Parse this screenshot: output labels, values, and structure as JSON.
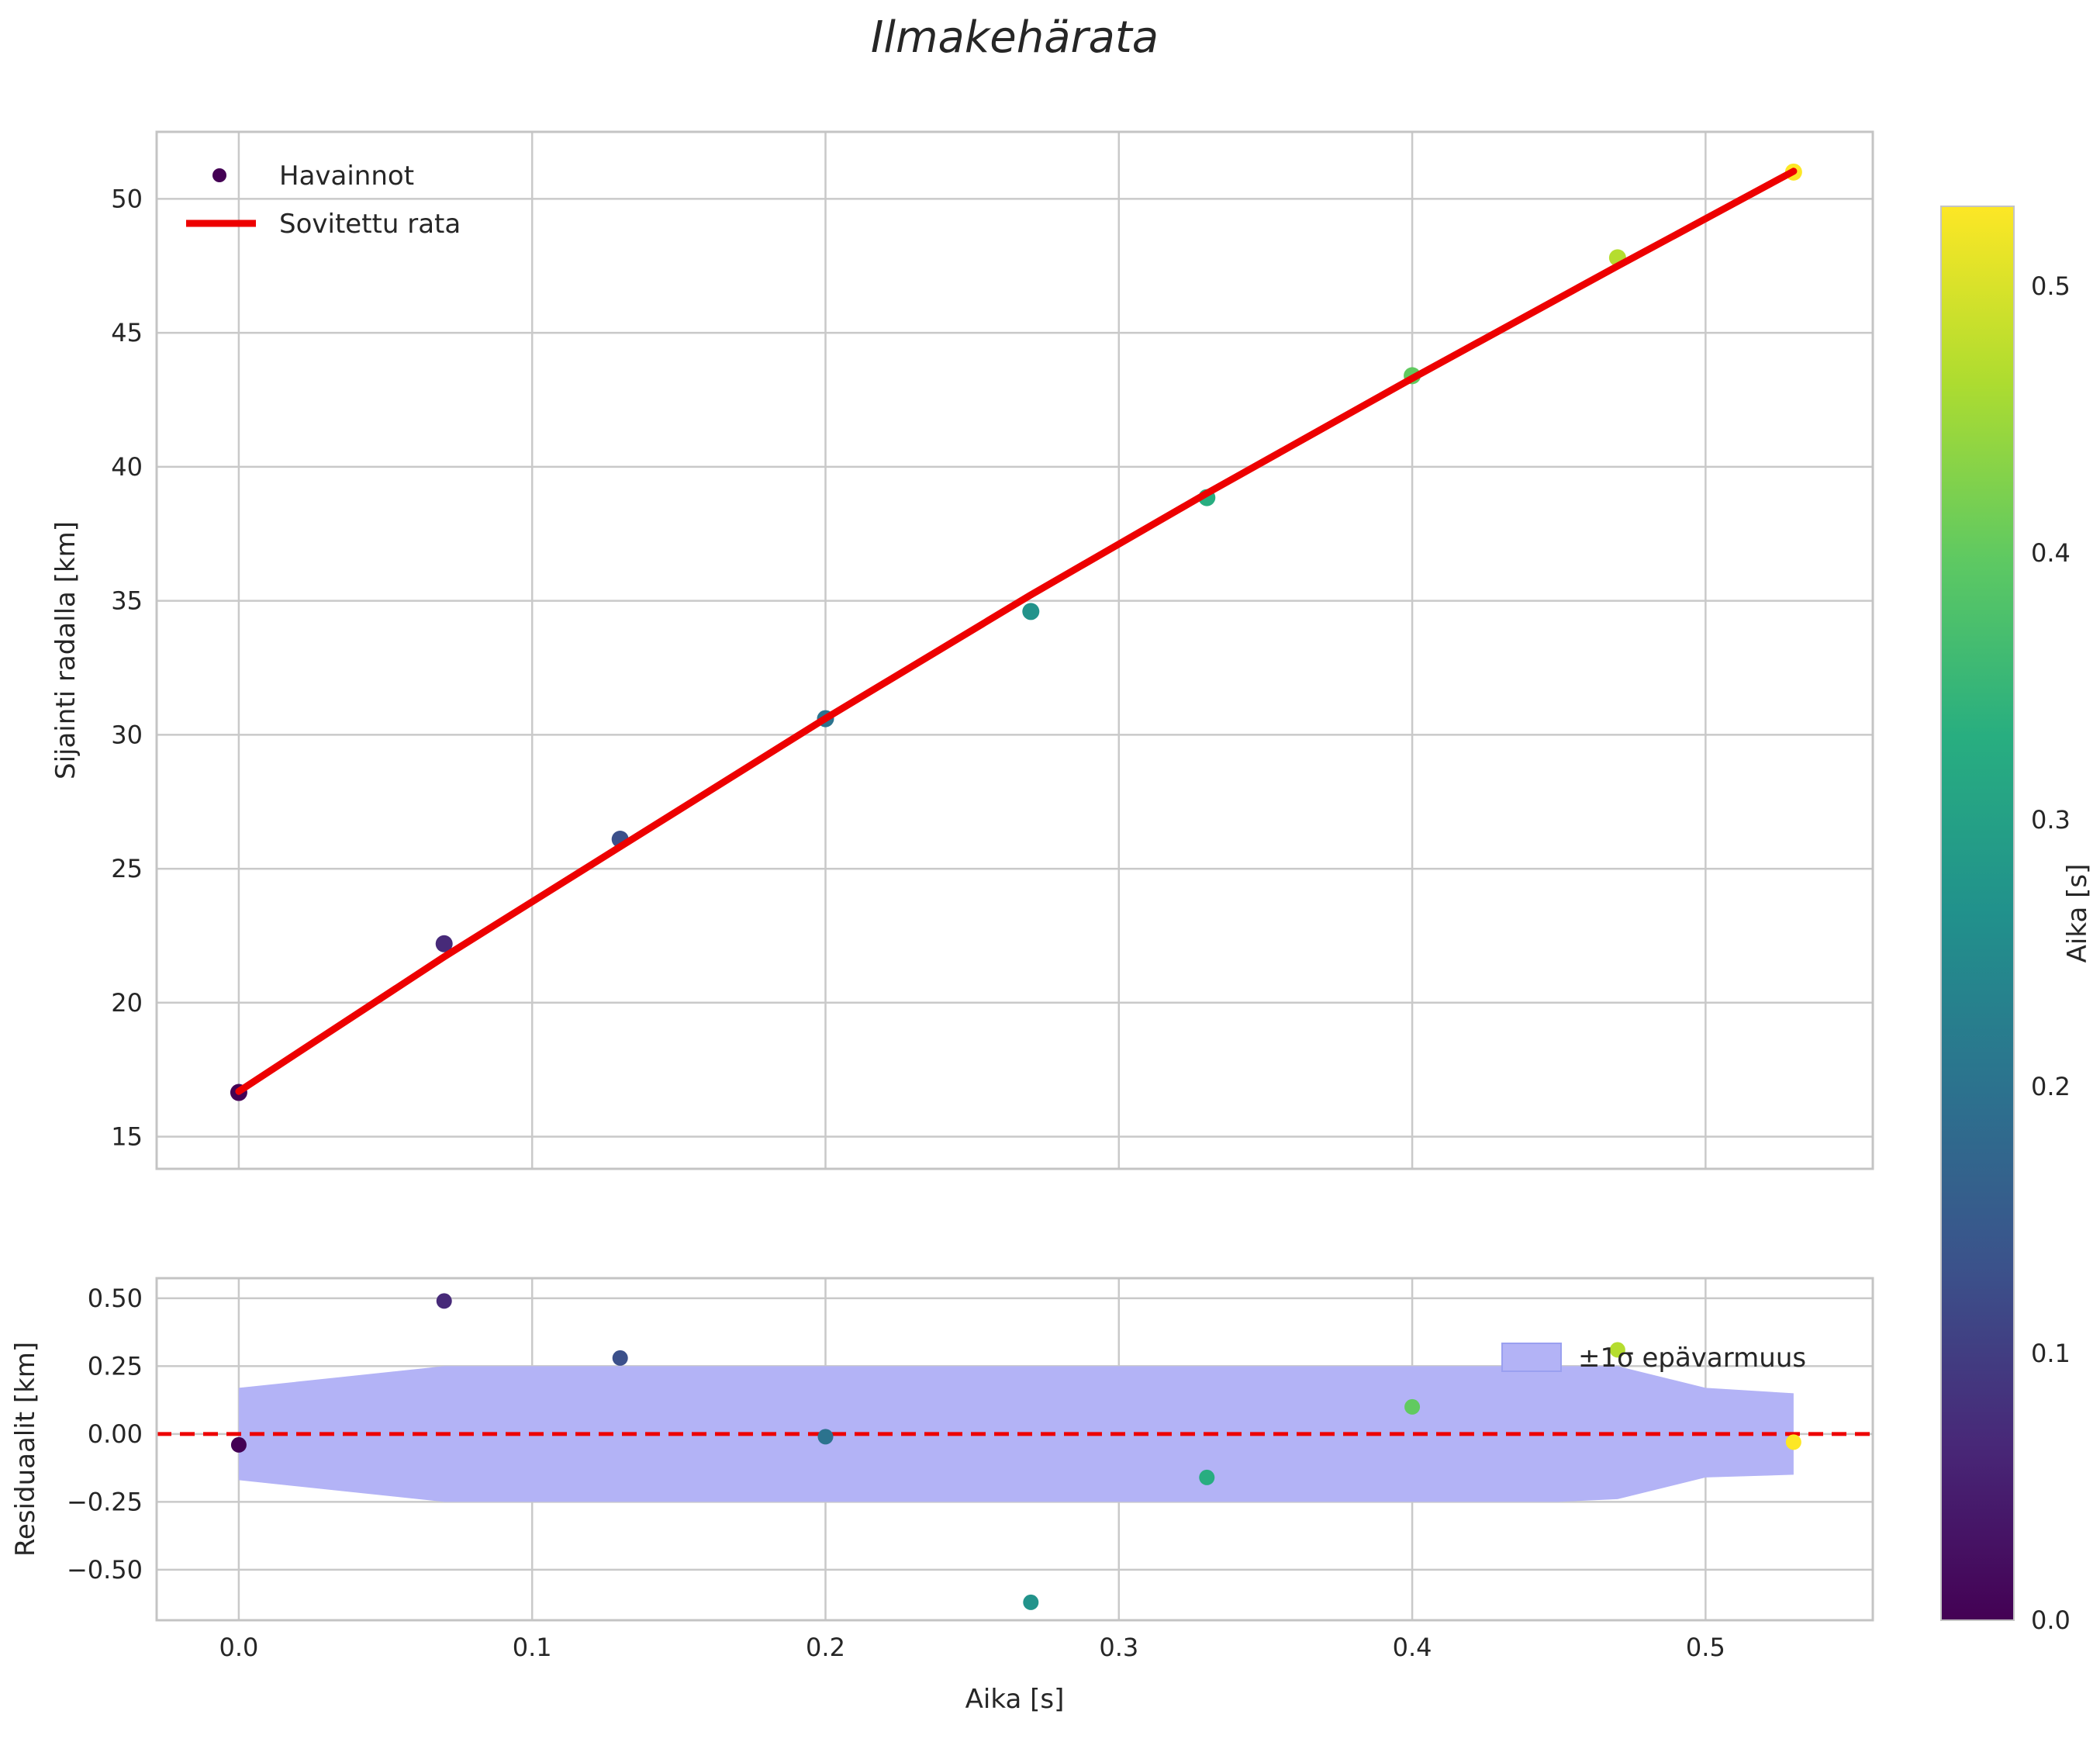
{
  "title": "Ilmakehärata",
  "chart_data": {
    "type": "scatter",
    "title": "Ilmakehärata",
    "colors": {
      "figure_background": "#ffffff",
      "axes_background": "#ffffff",
      "grid": "#c9c9c9",
      "spine": "#c4c4c4",
      "text": "#262626",
      "fit_line": "#ed0000",
      "zero_line": "#ed0000",
      "band_fill": "#b3b3f6",
      "band_edge": "#9aa0f0"
    },
    "main_plot": {
      "ylabel": "Sijainti radalla [km]",
      "xlim": [
        -0.028,
        0.557
      ],
      "ylim": [
        13.8,
        52.5
      ],
      "xticks": [
        0.0,
        0.1,
        0.2,
        0.3,
        0.4,
        0.5
      ],
      "yticks": [
        15,
        20,
        25,
        30,
        35,
        40,
        45,
        50
      ],
      "grid": true,
      "legend_position": "upper-left",
      "legend": [
        {
          "label": "Havainnot",
          "type": "marker"
        },
        {
          "label": "Sovitettu rata",
          "type": "line"
        }
      ],
      "observations": {
        "name": "Havainnot",
        "t": [
          0.0,
          0.07,
          0.13,
          0.2,
          0.27,
          0.33,
          0.4,
          0.47,
          0.53
        ],
        "y": [
          16.65,
          22.2,
          26.1,
          30.6,
          34.6,
          38.85,
          43.4,
          47.8,
          51.0
        ],
        "color_by": "t"
      },
      "fit": {
        "name": "Sovitettu rata",
        "t": [
          0.0,
          0.07,
          0.13,
          0.2,
          0.27,
          0.33,
          0.4,
          0.47,
          0.53
        ],
        "y": [
          16.69,
          21.71,
          25.82,
          30.61,
          35.22,
          39.01,
          43.3,
          47.49,
          51.03
        ]
      }
    },
    "residual_plot": {
      "ylabel": "Residuaalit [km]",
      "xlabel": "Aika [s]",
      "xlim": [
        -0.028,
        0.557
      ],
      "ylim": [
        -0.686,
        0.574
      ],
      "xticks": [
        0.0,
        0.1,
        0.2,
        0.3,
        0.4,
        0.5
      ],
      "yticks": [
        -0.5,
        -0.25,
        0.0,
        0.25,
        0.5
      ],
      "grid": true,
      "zero_line": 0.0,
      "legend_position": "upper-right",
      "legend": [
        {
          "label": "±1σ epävarmuus",
          "type": "patch"
        }
      ],
      "points": {
        "t": [
          0.0,
          0.07,
          0.13,
          0.2,
          0.27,
          0.33,
          0.4,
          0.47,
          0.53
        ],
        "values": [
          -0.04,
          0.49,
          0.28,
          -0.01,
          -0.62,
          -0.16,
          0.1,
          0.31,
          -0.03
        ]
      },
      "band": {
        "x": [
          0.0,
          0.07,
          0.45,
          0.47,
          0.5,
          0.53
        ],
        "upper": [
          0.17,
          0.25,
          0.25,
          0.25,
          0.17,
          0.15
        ],
        "lower": [
          -0.17,
          -0.25,
          -0.25,
          -0.24,
          -0.16,
          -0.15
        ]
      }
    },
    "colorbar": {
      "label": "Aika [s]",
      "range": [
        0.0,
        0.53
      ],
      "ticks": [
        0.0,
        0.1,
        0.2,
        0.3,
        0.4,
        0.5
      ],
      "colormap": "viridis",
      "stops": [
        "#440154",
        "#482878",
        "#3b528b",
        "#2c728e",
        "#21918c",
        "#28ae80",
        "#5ec962",
        "#addc30",
        "#fde725"
      ]
    }
  }
}
